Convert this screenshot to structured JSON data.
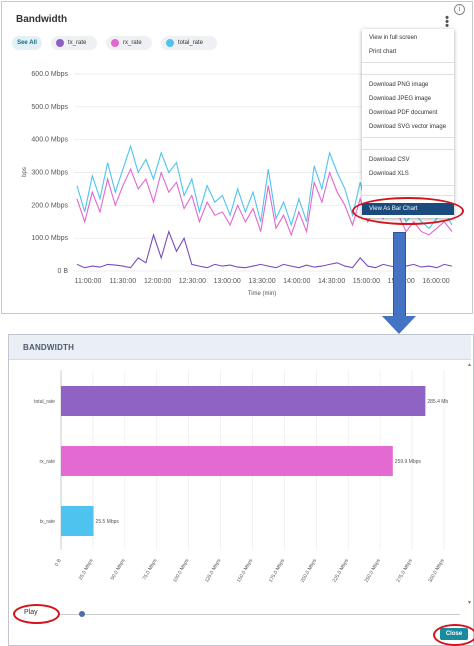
{
  "top": {
    "title": "Bandwidth",
    "info_icon": "i",
    "more_icon": "⋮",
    "see_all": "See All",
    "legend": [
      {
        "label": "tx_rate",
        "color": "#8e5ec7"
      },
      {
        "label": "rx_rate",
        "color": "#e466cf"
      },
      {
        "label": "total_rate",
        "color": "#4fc3ef"
      }
    ],
    "menu": {
      "items_group1": [
        "View in full screen",
        "Print chart"
      ],
      "items_group2": [
        "Download PNG image",
        "Download JPEG image",
        "Download PDF document",
        "Download SVG vector image"
      ],
      "items_group3": [
        "Download CSV",
        "Download XLS"
      ],
      "highlight": "View As Bar Chart"
    }
  },
  "chart_data": [
    {
      "type": "line",
      "title": "",
      "xlabel": "Time (min)",
      "ylabel": "bps",
      "y_ticks": [
        "0 B",
        "100.0 Mbps",
        "200.0 Mbps",
        "300.0 Mbps",
        "400.0 Mbps",
        "500.0 Mbps",
        "600.0 Mbps"
      ],
      "x_ticks": [
        "11:00:00",
        "11:30:00",
        "12:00:00",
        "12:30:00",
        "13:00:00",
        "13:30:00",
        "14:00:00",
        "14:30:00",
        "15:00:00",
        "15:30:00",
        "16:00:00"
      ],
      "ylim": [
        0,
        600
      ],
      "unit": "Mbps",
      "series": [
        {
          "name": "tx_rate",
          "color": "#7a4bbf",
          "approx_values": [
            20,
            10,
            15,
            12,
            20,
            18,
            15,
            10,
            40,
            25,
            110,
            40,
            120,
            60,
            100,
            20,
            15,
            10,
            20,
            15,
            18,
            12,
            10,
            15,
            20,
            15,
            10,
            20,
            15,
            10,
            18,
            12,
            15,
            20,
            25,
            15,
            10,
            40,
            15,
            10,
            20,
            15,
            10,
            15,
            20,
            12,
            15,
            10,
            20,
            15
          ]
        },
        {
          "name": "rx_rate",
          "color": "#e466cf",
          "approx_values": [
            220,
            150,
            240,
            180,
            280,
            200,
            260,
            310,
            250,
            280,
            210,
            300,
            240,
            270,
            190,
            230,
            150,
            210,
            170,
            180,
            140,
            200,
            150,
            190,
            120,
            260,
            130,
            170,
            110,
            180,
            120,
            270,
            210,
            300,
            240,
            200,
            140,
            220,
            150,
            200,
            160,
            210,
            170,
            120,
            150,
            120,
            110,
            130,
            150,
            120
          ]
        },
        {
          "name": "total_rate",
          "color": "#4fc3ef",
          "approx_values": [
            260,
            180,
            290,
            220,
            330,
            240,
            310,
            380,
            300,
            340,
            280,
            360,
            300,
            330,
            230,
            280,
            180,
            260,
            210,
            230,
            170,
            250,
            180,
            240,
            150,
            310,
            160,
            210,
            140,
            220,
            150,
            320,
            250,
            360,
            300,
            250,
            170,
            270,
            180,
            240,
            200,
            260,
            210,
            150,
            180,
            150,
            130,
            160,
            180,
            140
          ]
        }
      ]
    },
    {
      "type": "bar",
      "orientation": "horizontal",
      "title": "BANDWIDTH",
      "categories": [
        "total_rate",
        "rx_rate",
        "tx_rate"
      ],
      "values": [
        285.4,
        259.9,
        25.5
      ],
      "value_labels": [
        "285.4 Mb",
        "259.9 Mbps",
        "25.5 Mbps"
      ],
      "colors": [
        "#8e63c4",
        "#e26ad1",
        "#4ec3ef"
      ],
      "x_ticks": [
        "0 B",
        "25.0 Mbps",
        "50.0 Mbps",
        "75.0 Mbps",
        "100.0 Mbps",
        "125.0 Mbps",
        "150.0 Mbps",
        "175.0 Mbps",
        "200.0 Mbps",
        "225.0 Mbps",
        "250.0 Mbps",
        "275.0 Mbps",
        "300.0 Mbps"
      ],
      "xlim": [
        0,
        300
      ]
    }
  ],
  "bottom": {
    "title": "BANDWIDTH",
    "play_label": "Play",
    "close_label": "Close",
    "slider_progress": 0.05
  }
}
